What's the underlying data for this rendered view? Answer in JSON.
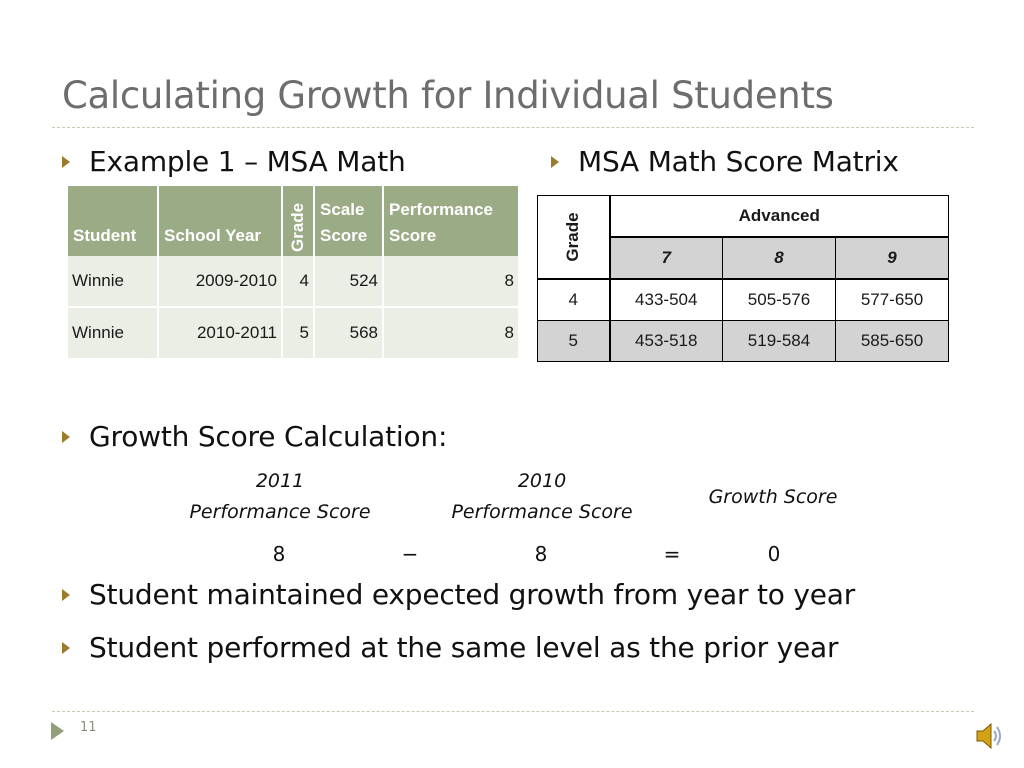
{
  "slide": {
    "title": "Calculating Growth for Individual Students",
    "page_number": "11"
  },
  "bullets": {
    "example": "Example 1 – MSA Math",
    "matrix": "MSA Math Score Matrix",
    "growth": "Growth Score Calculation:",
    "maintained": "Student maintained expected growth from year to year",
    "performed": "Student performed at the same level as the prior year"
  },
  "example_table": {
    "headers": [
      "Student",
      "School Year",
      "Grade",
      "Scale Score",
      "Performance Score"
    ],
    "rows": [
      [
        "Winnie",
        "2009-2010",
        "4",
        "524",
        "8"
      ],
      [
        "Winnie",
        "2010-2011",
        "5",
        "568",
        "8"
      ]
    ]
  },
  "matrix_table": {
    "grade_label": "Grade",
    "level": "Advanced",
    "subheaders": [
      "7",
      "8",
      "9"
    ],
    "rows": [
      {
        "grade": "4",
        "values": [
          "433-504",
          "505-576",
          "577-650"
        ]
      },
      {
        "grade": "5",
        "values": [
          "453-518",
          "519-584",
          "585-650"
        ]
      }
    ]
  },
  "formula": {
    "label1_line1": "2011",
    "label1_line2": "Performance Score",
    "label2_line1": "2010",
    "label2_line2": "Performance Score",
    "label3": "Growth Score",
    "value1": "8",
    "minus": "−",
    "value2": "8",
    "equals": "=",
    "result": "0"
  },
  "colors": {
    "title": "#6d6d6d",
    "bullet_arrow": "#9c7a2c",
    "table_header": "#9aab85",
    "table_body": "#eaeee4",
    "matrix_grey": "#d3d3d3"
  },
  "icons": [
    "bullet-arrow-icon",
    "next-slide-icon",
    "speaker-icon"
  ]
}
